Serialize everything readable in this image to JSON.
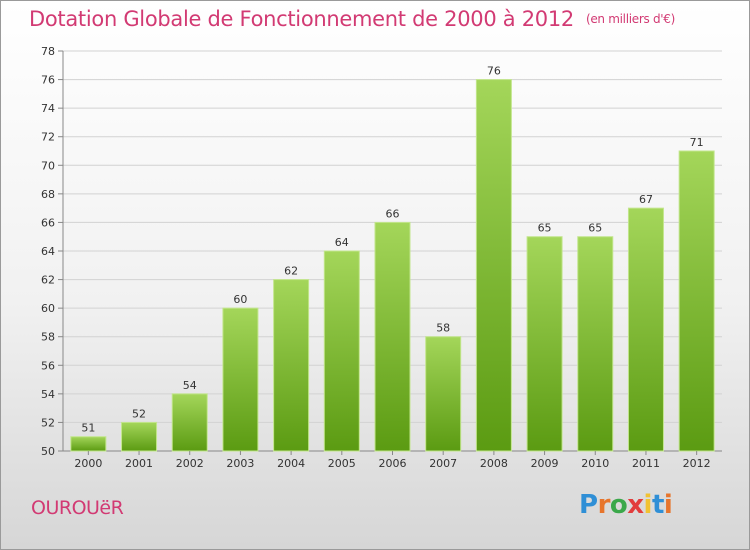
{
  "title": "Dotation Globale de Fonctionnement de 2000 à 2012",
  "subtitle": "(en milliers d'€)",
  "commune": "OUROUëR",
  "logo": {
    "text": "Proxiti",
    "colors": [
      "#2f8fd6",
      "#e7752c",
      "#3aa84a",
      "#e23c3c",
      "#f1c232",
      "#2f8fd6",
      "#e7752c"
    ]
  },
  "colors": {
    "accent": "#d23a73",
    "bar_top": "#a4d65a",
    "bar_bottom": "#5b9b12"
  },
  "chart_data": {
    "type": "bar",
    "categories": [
      "2000",
      "2001",
      "2002",
      "2003",
      "2004",
      "2005",
      "2006",
      "2007",
      "2008",
      "2009",
      "2010",
      "2011",
      "2012"
    ],
    "values": [
      51,
      52,
      54,
      60,
      62,
      64,
      66,
      58,
      76,
      65,
      65,
      67,
      71
    ],
    "title": "Dotation Globale de Fonctionnement de 2000 à 2012",
    "subtitle": "(en milliers d'€)",
    "xlabel": "",
    "ylabel": "",
    "ylim": [
      50,
      78
    ],
    "yticks": [
      50,
      52,
      54,
      56,
      58,
      60,
      62,
      64,
      66,
      68,
      70,
      72,
      74,
      76,
      78
    ],
    "grid": "horizontal",
    "data_labels": true
  }
}
